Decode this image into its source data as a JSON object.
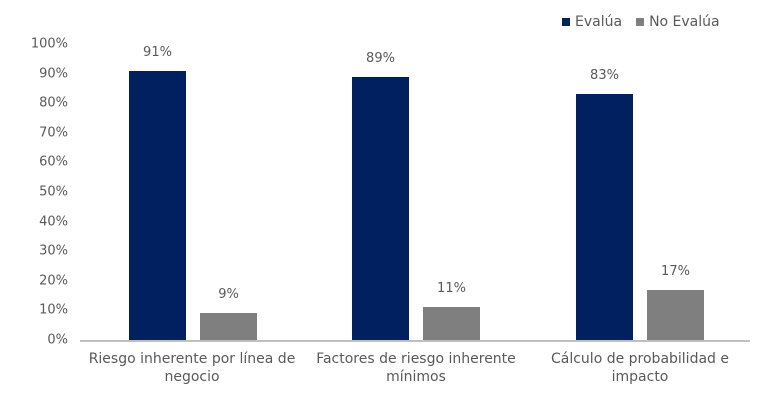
{
  "chart_data": {
    "type": "bar",
    "title": "",
    "xlabel": "",
    "ylabel": "",
    "categories": [
      "Riesgo inherente por línea de negocio",
      "Factores de riesgo inherente mínimos",
      "Cálculo de probabilidad e impacto"
    ],
    "series": [
      {
        "name": "Evalúa",
        "color": "#002060",
        "values": [
          91,
          89,
          83
        ],
        "labels": [
          "91%",
          "89%",
          "83%"
        ]
      },
      {
        "name": "No Evalúa",
        "color": "#7f7f7f",
        "values": [
          9,
          11,
          17
        ],
        "labels": [
          "9%",
          "11%",
          "17%"
        ]
      }
    ],
    "ylim": [
      0,
      100
    ],
    "yticks": [
      "0%",
      "10%",
      "20%",
      "30%",
      "40%",
      "50%",
      "60%",
      "70%",
      "80%",
      "90%",
      "100%"
    ],
    "grid": false,
    "legend_position": "top-right"
  },
  "legend": {
    "evalua": "Evalúa",
    "no_evalua": "No Evalúa"
  },
  "xlabels": {
    "c0_line1": "Riesgo inherente por línea de",
    "c0_line2": "negocio",
    "c1_line1": "Factores de riesgo inherente",
    "c1_line2": "mínimos",
    "c2_line1": "Cálculo de probabilidad e",
    "c2_line2": "impacto"
  }
}
